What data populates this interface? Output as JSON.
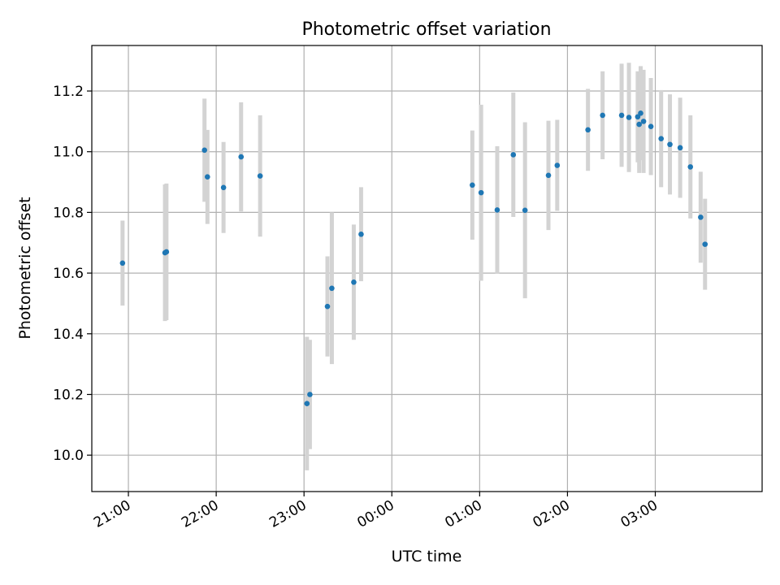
{
  "chart_data": {
    "type": "scatter",
    "title": "Photometric offset variation",
    "xlabel": "UTC time",
    "ylabel": "Photometric offset",
    "xlim": [
      "20:35",
      "04:13"
    ],
    "ylim": [
      9.88,
      11.35
    ],
    "x_ticks": [
      "21:00",
      "22:00",
      "23:00",
      "00:00",
      "01:00",
      "02:00",
      "03:00"
    ],
    "y_ticks": [
      10.0,
      10.2,
      10.4,
      10.6,
      10.8,
      11.0,
      11.2
    ],
    "y_tick_labels": [
      "10.0",
      "10.2",
      "10.4",
      "10.6",
      "10.8",
      "11.0",
      "11.2"
    ],
    "grid": true,
    "colors": {
      "marker": "#1f77b4",
      "errorbar": "#d3d3d3",
      "grid": "#b0b0b0"
    },
    "series": [
      {
        "points": [
          {
            "x": "20:56",
            "y": 10.633,
            "err": 0.14
          },
          {
            "x": "21:25",
            "y": 10.667,
            "err": 0.225
          },
          {
            "x": "21:26",
            "y": 10.67,
            "err": 0.225
          },
          {
            "x": "21:52",
            "y": 11.005,
            "err": 0.17
          },
          {
            "x": "21:54",
            "y": 10.917,
            "err": 0.155
          },
          {
            "x": "22:05",
            "y": 10.882,
            "err": 0.15
          },
          {
            "x": "22:17",
            "y": 10.983,
            "err": 0.18
          },
          {
            "x": "22:30",
            "y": 10.92,
            "err": 0.2
          },
          {
            "x": "23:02",
            "y": 10.17,
            "err": 0.22
          },
          {
            "x": "23:04",
            "y": 10.2,
            "err": 0.18
          },
          {
            "x": "23:16",
            "y": 10.49,
            "err": 0.165
          },
          {
            "x": "23:19",
            "y": 10.55,
            "err": 0.25
          },
          {
            "x": "23:34",
            "y": 10.57,
            "err": 0.19
          },
          {
            "x": "23:39",
            "y": 10.728,
            "err": 0.155
          },
          {
            "x": "00:55",
            "y": 10.89,
            "err": 0.18
          },
          {
            "x": "01:01",
            "y": 10.865,
            "err": 0.29
          },
          {
            "x": "01:12",
            "y": 10.808,
            "err": 0.21
          },
          {
            "x": "01:23",
            "y": 10.99,
            "err": 0.205
          },
          {
            "x": "01:31",
            "y": 10.807,
            "err": 0.29
          },
          {
            "x": "01:47",
            "y": 10.922,
            "err": 0.18
          },
          {
            "x": "01:53",
            "y": 10.955,
            "err": 0.15
          },
          {
            "x": "02:14",
            "y": 11.072,
            "err": 0.135
          },
          {
            "x": "02:24",
            "y": 11.12,
            "err": 0.145
          },
          {
            "x": "02:37",
            "y": 11.12,
            "err": 0.17
          },
          {
            "x": "02:42",
            "y": 11.113,
            "err": 0.18
          },
          {
            "x": "02:48",
            "y": 11.115,
            "err": 0.15
          },
          {
            "x": "02:49",
            "y": 11.09,
            "err": 0.16
          },
          {
            "x": "02:50",
            "y": 11.127,
            "err": 0.155
          },
          {
            "x": "02:52",
            "y": 11.1,
            "err": 0.17
          },
          {
            "x": "02:57",
            "y": 11.083,
            "err": 0.16
          },
          {
            "x": "03:04",
            "y": 11.043,
            "err": 0.16
          },
          {
            "x": "03:10",
            "y": 11.024,
            "err": 0.165
          },
          {
            "x": "03:17",
            "y": 11.013,
            "err": 0.165
          },
          {
            "x": "03:24",
            "y": 10.95,
            "err": 0.17
          },
          {
            "x": "03:31",
            "y": 10.784,
            "err": 0.15
          },
          {
            "x": "03:34",
            "y": 10.695,
            "err": 0.15
          }
        ]
      }
    ]
  }
}
